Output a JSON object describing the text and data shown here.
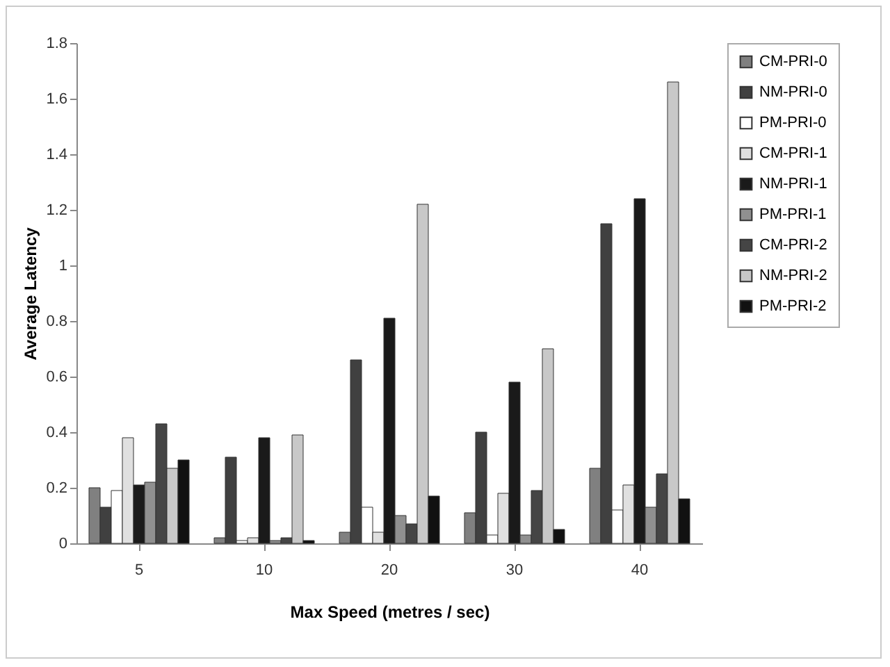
{
  "chart_data": {
    "type": "bar",
    "xlabel": "Max Speed (metres / sec)",
    "ylabel": "Average Latency",
    "categories": [
      "5",
      "10",
      "20",
      "30",
      "40"
    ],
    "series": [
      {
        "name": "CM-PRI-0",
        "color": "#808080",
        "values": [
          0.2,
          0.02,
          0.04,
          0.11,
          0.27
        ]
      },
      {
        "name": "NM-PRI-0",
        "color": "#404040",
        "values": [
          0.13,
          0.31,
          0.66,
          0.4,
          1.15
        ]
      },
      {
        "name": "PM-PRI-0",
        "color": "#ffffff",
        "values": [
          0.19,
          0.01,
          0.13,
          0.03,
          0.12
        ]
      },
      {
        "name": "CM-PRI-1",
        "color": "#e0e0e0",
        "values": [
          0.38,
          0.02,
          0.04,
          0.18,
          0.21
        ]
      },
      {
        "name": "NM-PRI-1",
        "color": "#1a1a1a",
        "values": [
          0.21,
          0.38,
          0.81,
          0.58,
          1.24
        ]
      },
      {
        "name": "PM-PRI-1",
        "color": "#909090",
        "values": [
          0.22,
          0.01,
          0.1,
          0.03,
          0.13
        ]
      },
      {
        "name": "CM-PRI-2",
        "color": "#454545",
        "values": [
          0.43,
          0.02,
          0.07,
          0.19,
          0.25
        ]
      },
      {
        "name": "NM-PRI-2",
        "color": "#c8c8c8",
        "values": [
          0.27,
          0.39,
          1.22,
          0.7,
          1.66
        ]
      },
      {
        "name": "PM-PRI-2",
        "color": "#111111",
        "values": [
          0.3,
          0.01,
          0.17,
          0.05,
          0.16
        ]
      }
    ],
    "ylim": [
      0,
      1.8
    ],
    "yticks": [
      0,
      0.2,
      0.4,
      0.6,
      0.8,
      1,
      1.2,
      1.4,
      1.6,
      1.8
    ],
    "grid": false,
    "legend": "right"
  }
}
